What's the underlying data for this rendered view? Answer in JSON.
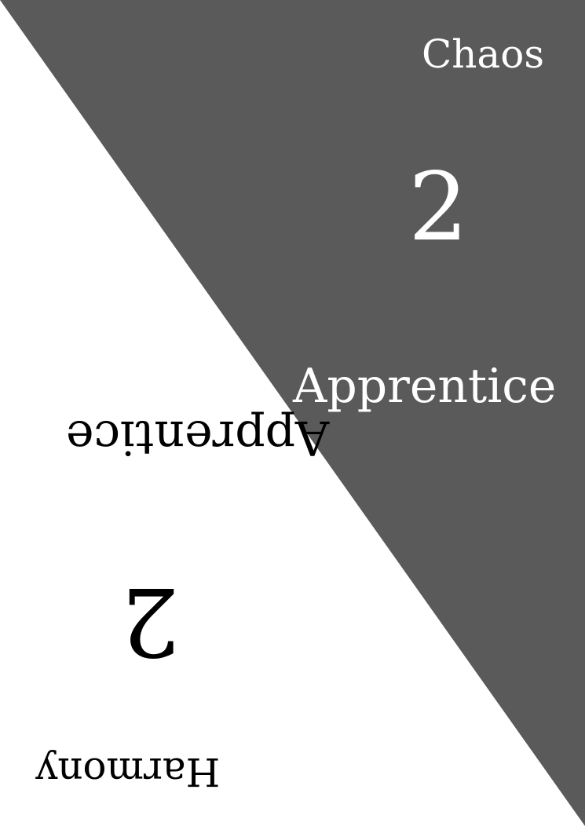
{
  "colors": {
    "chaos_background": "#5a5a5a",
    "chaos_text": "#ffffff",
    "harmony_background": "#ffffff",
    "harmony_text": "#000000"
  },
  "chaos": {
    "title": "Chaos",
    "value": "2",
    "rank": "Apprentice"
  },
  "harmony": {
    "title": "Harmony",
    "value": "2",
    "rank": "Apprentice"
  }
}
